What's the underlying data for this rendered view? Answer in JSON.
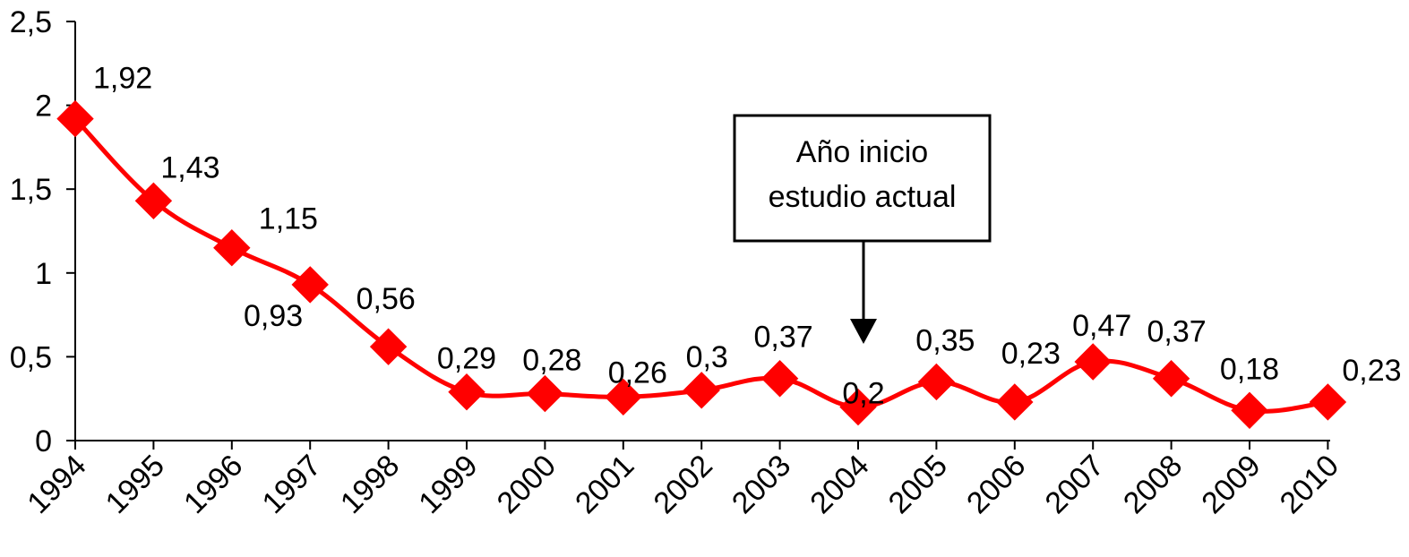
{
  "chart_data": {
    "type": "line",
    "x": [
      "1994",
      "1995",
      "1996",
      "1997",
      "1998",
      "1999",
      "2000",
      "2001",
      "2002",
      "2003",
      "2004",
      "2005",
      "2006",
      "2007",
      "2008",
      "2009",
      "2010"
    ],
    "series": [
      {
        "values": [
          1.92,
          1.43,
          1.15,
          0.93,
          0.56,
          0.29,
          0.28,
          0.26,
          0.3,
          0.37,
          0.2,
          0.35,
          0.23,
          0.47,
          0.37,
          0.18,
          0.23
        ],
        "labels": [
          "1,92",
          "1,43",
          "1,15",
          "0,93",
          "0,56",
          "0,29",
          "0,28",
          "0,26",
          "0,3",
          "0,37",
          "0,2",
          "0,35",
          "0,23",
          "0,47",
          "0,37",
          "0,18",
          "0,23"
        ],
        "color": "#ff0000",
        "marker": "diamond"
      }
    ],
    "ylim": [
      0,
      2.5
    ],
    "yticks": [
      0,
      0.5,
      1,
      1.5,
      2,
      2.5
    ],
    "ytick_labels": [
      "0",
      "0,5",
      "1",
      "1,5",
      "2",
      "2,5"
    ],
    "grid": false,
    "legend": "none",
    "annotation": {
      "lines": [
        "Año inicio",
        "estudio actual"
      ],
      "target_x": "2004"
    }
  }
}
